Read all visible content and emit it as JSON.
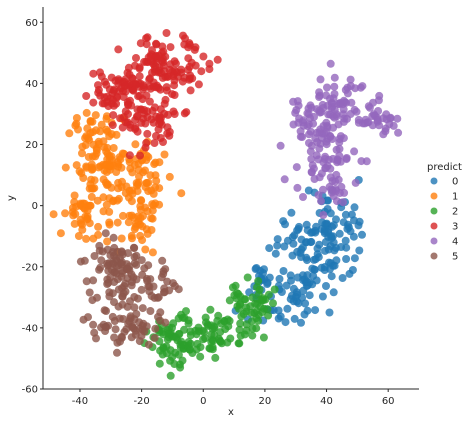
{
  "chart_data": {
    "type": "scatter",
    "title": "",
    "xlabel": "x",
    "ylabel": "y",
    "xlim": [
      -52,
      70
    ],
    "ylim": [
      -60,
      65
    ],
    "x_ticks": [
      -40,
      -20,
      0,
      20,
      40,
      60
    ],
    "y_ticks": [
      -60,
      -40,
      -20,
      0,
      20,
      40,
      60
    ],
    "grid": false,
    "legend": {
      "title": "predict",
      "placement": "right",
      "entries": [
        "0",
        "1",
        "2",
        "3",
        "4",
        "5"
      ]
    },
    "series": [
      {
        "name": "0",
        "color": "#1f77b4",
        "clusters": [
          {
            "cx": 35,
            "cy": -15,
            "sx": 6,
            "sy": 8,
            "n": 90
          },
          {
            "cx": 42,
            "cy": -5,
            "sx": 5,
            "sy": 5,
            "n": 40
          },
          {
            "cx": 27,
            "cy": -30,
            "sx": 6,
            "sy": 5,
            "n": 45
          },
          {
            "cx": 18,
            "cy": -24,
            "sx": 3,
            "sy": 3,
            "n": 15
          }
        ]
      },
      {
        "name": "1",
        "color": "#ff7f0e",
        "clusters": [
          {
            "cx": -33,
            "cy": 10,
            "sx": 5,
            "sy": 9,
            "n": 110
          },
          {
            "cx": -20,
            "cy": 0,
            "sx": 4,
            "sy": 7,
            "n": 60
          },
          {
            "cx": -41,
            "cy": -3,
            "sx": 3,
            "sy": 4,
            "n": 25
          },
          {
            "cx": -36,
            "cy": 23,
            "sx": 4,
            "sy": 3,
            "n": 20
          },
          {
            "cx": -18,
            "cy": 15,
            "sx": 3,
            "sy": 4,
            "n": 25
          }
        ]
      },
      {
        "name": "2",
        "color": "#2ca02c",
        "clusters": [
          {
            "cx": -2,
            "cy": -42,
            "sx": 6,
            "sy": 4,
            "n": 80
          },
          {
            "cx": -11,
            "cy": -45,
            "sx": 3,
            "sy": 4,
            "n": 35
          },
          {
            "cx": 14,
            "cy": -34,
            "sx": 4,
            "sy": 5,
            "n": 45
          },
          {
            "cx": 19,
            "cy": -30,
            "sx": 2,
            "sy": 3,
            "n": 15
          }
        ]
      },
      {
        "name": "3",
        "color": "#d62728",
        "clusters": [
          {
            "cx": -20,
            "cy": 35,
            "sx": 5,
            "sy": 7,
            "n": 90
          },
          {
            "cx": -10,
            "cy": 47,
            "sx": 6,
            "sy": 5,
            "n": 90
          },
          {
            "cx": -30,
            "cy": 37,
            "sx": 4,
            "sy": 4,
            "n": 40
          },
          {
            "cx": -13,
            "cy": 27,
            "sx": 3,
            "sy": 3,
            "n": 20
          }
        ]
      },
      {
        "name": "4",
        "color": "#9467bd",
        "clusters": [
          {
            "cx": 42,
            "cy": 32,
            "sx": 7,
            "sy": 5,
            "n": 90
          },
          {
            "cx": 40,
            "cy": 12,
            "sx": 5,
            "sy": 7,
            "n": 70
          },
          {
            "cx": 58,
            "cy": 27,
            "sx": 4,
            "sy": 2,
            "n": 25
          },
          {
            "cx": 34,
            "cy": 24,
            "sx": 3,
            "sy": 3,
            "n": 15
          }
        ]
      },
      {
        "name": "5",
        "color": "#8c564b",
        "clusters": [
          {
            "cx": -25,
            "cy": -28,
            "sx": 6,
            "sy": 7,
            "n": 90
          },
          {
            "cx": -28,
            "cy": -17,
            "sx": 4,
            "sy": 3,
            "n": 35
          },
          {
            "cx": -25,
            "cy": -40,
            "sx": 6,
            "sy": 3,
            "n": 35
          },
          {
            "cx": -13,
            "cy": -27,
            "sx": 2,
            "sy": 4,
            "n": 15
          }
        ]
      }
    ]
  }
}
